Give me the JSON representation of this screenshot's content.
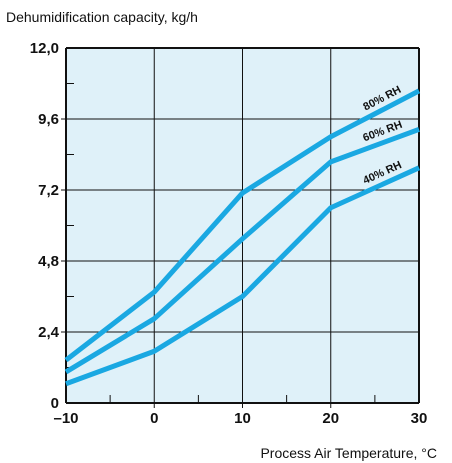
{
  "chart_data": {
    "type": "line",
    "title": "",
    "ylabel": "Dehumidification capacity, kg/h",
    "xlabel": "Process Air Temperature, °C",
    "xlim": [
      -10,
      30
    ],
    "ylim": [
      0,
      12.0
    ],
    "xticks": [
      -10,
      0,
      10,
      20,
      30
    ],
    "xtick_labels": [
      "–10",
      "0",
      "10",
      "20",
      "30"
    ],
    "yticks": [
      0,
      2.4,
      4.8,
      7.2,
      9.6,
      12.0
    ],
    "ytick_labels": [
      "0",
      "2,4",
      "4,8",
      "7,2",
      "9,6",
      "12,0"
    ],
    "grid": true,
    "series": [
      {
        "name": "80% RH",
        "x": [
          -10,
          0,
          10,
          20,
          30
        ],
        "y": [
          1.45,
          3.75,
          7.1,
          9.0,
          10.55
        ]
      },
      {
        "name": "60% RH",
        "x": [
          -10,
          0,
          10,
          20,
          30
        ],
        "y": [
          1.05,
          2.85,
          5.55,
          8.15,
          9.25
        ]
      },
      {
        "name": "40% RH",
        "x": [
          -10,
          0,
          10,
          20,
          30
        ],
        "y": [
          0.65,
          1.75,
          3.6,
          6.6,
          7.95
        ]
      }
    ],
    "colors": {
      "plot_background": "#dff1f9",
      "series_line": "#1aa8e2",
      "grid": "#111111"
    }
  }
}
